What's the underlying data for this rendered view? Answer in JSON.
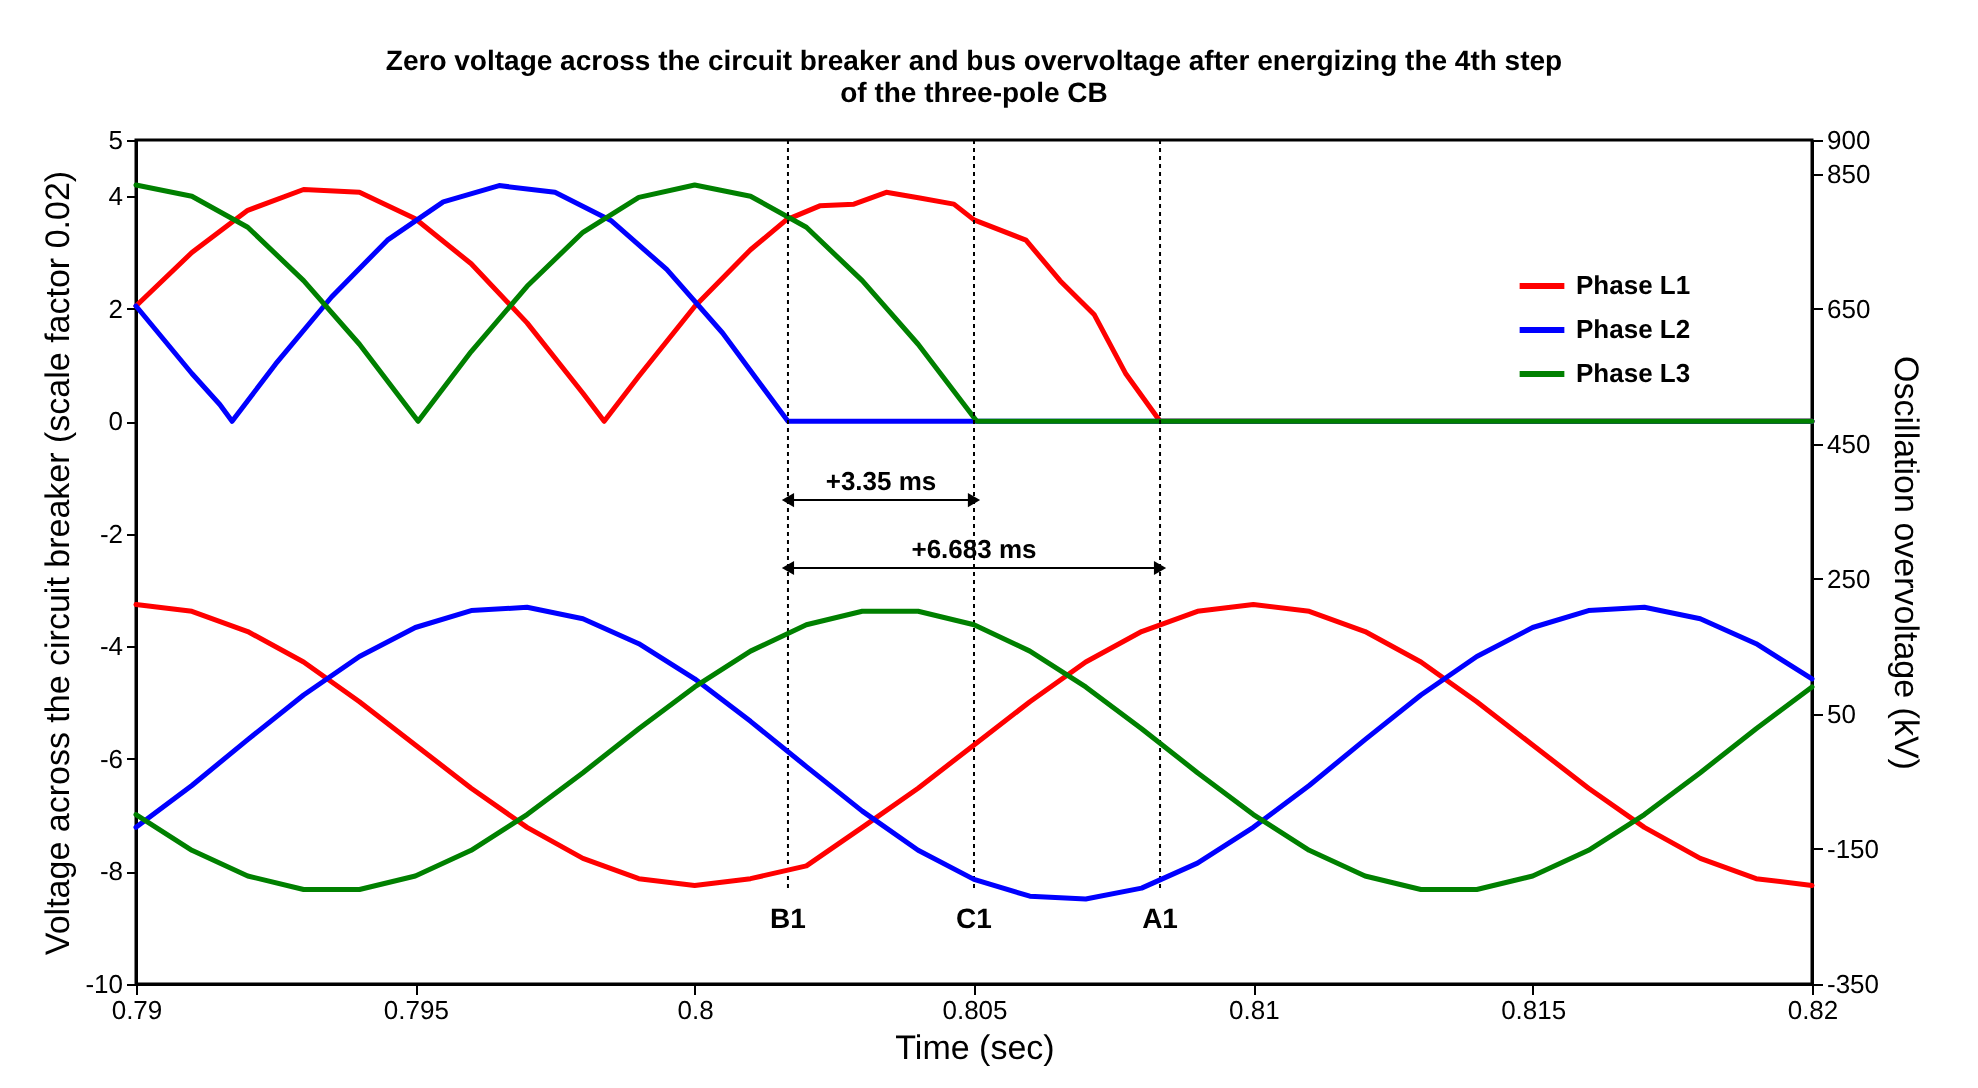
{
  "chart_data": {
    "type": "line",
    "title": "Zero voltage across the circuit breaker and bus overvoltage after energizing the 4th step of the three-pole CB",
    "xlabel": "Time (sec)",
    "ylabel": "Voltage across the circuit breaker (scale factor 0.02)",
    "y2label": "Oscillation overvoltage (kV)",
    "xlim": [
      0.79,
      0.82
    ],
    "xticks": [
      0.79,
      0.795,
      0.8,
      0.805,
      0.81,
      0.815,
      0.82
    ],
    "ylim": [
      -10,
      5
    ],
    "yticks": [
      5,
      4,
      2,
      0,
      -2,
      -4,
      -6,
      -8,
      -10
    ],
    "y2lim": [
      -350,
      900
    ],
    "y2ticks": [
      900,
      850,
      650,
      450,
      250,
      50,
      -150,
      -350
    ],
    "grid": false,
    "legend": "top right",
    "marker": "none",
    "line_style": "solid",
    "series": [
      {
        "name": "Phase L1",
        "color": "#ff0000",
        "x": [
          0.79,
          0.791,
          0.792,
          0.793,
          0.794,
          0.795,
          0.796,
          0.797,
          0.798,
          0.79838,
          0.799,
          0.8,
          0.801,
          0.80164,
          0.80224,
          0.80285,
          0.80343,
          0.80403,
          0.80464,
          0.805,
          0.80593,
          0.80654,
          0.80715,
          0.80772,
          0.80833,
          0.82
        ],
        "values": [
          2.05,
          3.0,
          3.75,
          4.12,
          4.07,
          3.6,
          2.8,
          1.75,
          0.5,
          0,
          0.8,
          2.04,
          3.05,
          3.58,
          3.83,
          3.86,
          4.07,
          3.97,
          3.86,
          3.58,
          3.22,
          2.5,
          1.9,
          0.84,
          0,
          0
        ]
      },
      {
        "name": "Phase L2",
        "color": "#0000ff",
        "x": [
          0.79,
          0.7905,
          0.791,
          0.7915,
          0.79172,
          0.7925,
          0.7935,
          0.7945,
          0.7955,
          0.7965,
          0.7975,
          0.7985,
          0.7995,
          0.8005,
          0.80167,
          0.82
        ],
        "values": [
          2.05,
          1.45,
          0.85,
          0.3,
          0,
          1.02,
          2.21,
          3.22,
          3.9,
          4.19,
          4.07,
          3.57,
          2.7,
          1.57,
          0,
          0
        ]
      },
      {
        "name": "Phase L3",
        "color": "#008000",
        "x": [
          0.79,
          0.791,
          0.792,
          0.793,
          0.794,
          0.79505,
          0.796,
          0.797,
          0.798,
          0.799,
          0.8,
          0.801,
          0.802,
          0.803,
          0.804,
          0.80505,
          0.82
        ],
        "values": [
          4.2,
          4.0,
          3.45,
          2.5,
          1.37,
          0,
          1.24,
          2.4,
          3.36,
          3.98,
          4.2,
          4.0,
          3.45,
          2.5,
          1.37,
          0,
          0
        ]
      },
      {
        "color": "#ff0000",
        "axis": "y2",
        "x": [
          0.79,
          0.791,
          0.792,
          0.793,
          0.794,
          0.795,
          0.796,
          0.797,
          0.798,
          0.799,
          0.8,
          0.801,
          0.802,
          0.803,
          0.804,
          0.805,
          0.806,
          0.807,
          0.808,
          0.809,
          0.81,
          0.811,
          0.812,
          0.813,
          0.814,
          0.815,
          0.816,
          0.817,
          0.818,
          0.819,
          0.82
        ],
        "values": [
          212,
          202,
          172,
          127,
          68,
          4,
          -60,
          -118,
          -164,
          -194,
          -204,
          -194,
          -175,
          -118,
          -60,
          4,
          68,
          127,
          172,
          202,
          212,
          202,
          172,
          127,
          68,
          4,
          -60,
          -118,
          -164,
          -194,
          -204
        ]
      },
      {
        "color": "#0000ff",
        "axis": "y2",
        "x": [
          0.79,
          0.791,
          0.792,
          0.793,
          0.794,
          0.795,
          0.796,
          0.797,
          0.798,
          0.799,
          0.8,
          0.801,
          0.802,
          0.803,
          0.804,
          0.805,
          0.806,
          0.807,
          0.808,
          0.809,
          0.81,
          0.811,
          0.812,
          0.813,
          0.814,
          0.815,
          0.816,
          0.817,
          0.818,
          0.819,
          0.82
        ],
        "values": [
          -118,
          -56,
          12,
          78,
          135,
          178,
          203,
          208,
          191,
          154,
          102,
          39,
          -28,
          -94,
          -152,
          -195,
          -220,
          -224,
          -208,
          -171,
          -118,
          -56,
          12,
          78,
          135,
          178,
          203,
          208,
          191,
          154,
          102
        ]
      },
      {
        "color": "#008000",
        "axis": "y2",
        "x": [
          0.79,
          0.791,
          0.792,
          0.793,
          0.794,
          0.795,
          0.796,
          0.797,
          0.798,
          0.799,
          0.8,
          0.801,
          0.802,
          0.803,
          0.804,
          0.805,
          0.806,
          0.807,
          0.808,
          0.809,
          0.81,
          0.811,
          0.812,
          0.813,
          0.814,
          0.815,
          0.816,
          0.817,
          0.818,
          0.819,
          0.82
        ],
        "values": [
          -99,
          -152,
          -190,
          -210,
          -210,
          -190,
          -152,
          -99,
          -37,
          28,
          90,
          143,
          182,
          202,
          202,
          182,
          143,
          90,
          28,
          -37,
          -99,
          -152,
          -190,
          -210,
          -210,
          -190,
          -152,
          -99,
          -37,
          28,
          90
        ]
      }
    ],
    "ref_lines": [
      {
        "axis": "x",
        "value": 0.80167,
        "label": "B1",
        "color": "#000000",
        "line_style": "dotted"
      },
      {
        "axis": "x",
        "value": 0.805,
        "label": "C1",
        "color": "#000000",
        "line_style": "dotted"
      },
      {
        "axis": "x",
        "value": 0.80833,
        "label": "A1",
        "color": "#000000",
        "line_style": "dotted"
      }
    ],
    "annotations": [
      {
        "text": "+3.35 ms",
        "x": 0.805,
        "y": -1.4
      },
      "+6.683 ms"
    ]
  }
}
